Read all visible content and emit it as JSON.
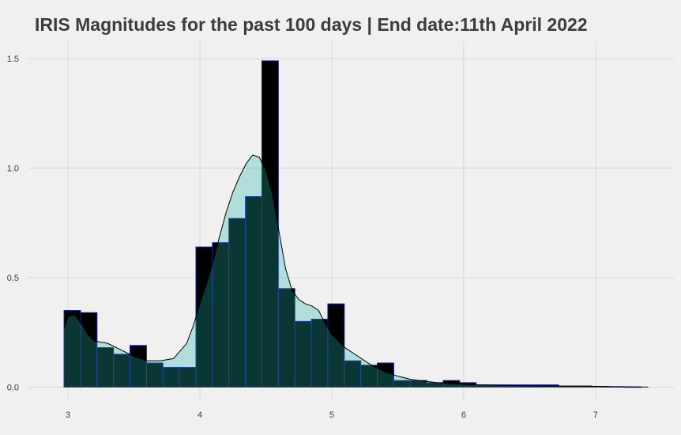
{
  "chart_data": {
    "type": "histogram",
    "title": "IRIS Magnitudes for the past 100 days | End date:11th April 2022",
    "xlabel": "",
    "ylabel": "",
    "xlim": [
      2.7,
      7.6
    ],
    "ylim": [
      -0.06,
      1.58
    ],
    "x_ticks": [
      "3",
      "4",
      "5",
      "6",
      "7"
    ],
    "y_ticks": [
      "0.0",
      "0.5",
      "1.0",
      "1.5"
    ],
    "grid": true,
    "bin_width": 0.125,
    "histogram": {
      "name": "histogram",
      "bins": [
        {
          "start": 2.97,
          "value": 0.35
        },
        {
          "start": 3.095,
          "value": 0.34
        },
        {
          "start": 3.22,
          "value": 0.18
        },
        {
          "start": 3.345,
          "value": 0.15
        },
        {
          "start": 3.47,
          "value": 0.19
        },
        {
          "start": 3.595,
          "value": 0.11
        },
        {
          "start": 3.72,
          "value": 0.09
        },
        {
          "start": 3.845,
          "value": 0.09
        },
        {
          "start": 3.97,
          "value": 0.64
        },
        {
          "start": 4.095,
          "value": 0.66
        },
        {
          "start": 4.22,
          "value": 0.77
        },
        {
          "start": 4.345,
          "value": 0.87
        },
        {
          "start": 4.47,
          "value": 1.49
        },
        {
          "start": 4.595,
          "value": 0.45
        },
        {
          "start": 4.72,
          "value": 0.3
        },
        {
          "start": 4.845,
          "value": 0.31
        },
        {
          "start": 4.97,
          "value": 0.38
        },
        {
          "start": 5.095,
          "value": 0.12
        },
        {
          "start": 5.22,
          "value": 0.1
        },
        {
          "start": 5.345,
          "value": 0.11
        },
        {
          "start": 5.47,
          "value": 0.03
        },
        {
          "start": 5.595,
          "value": 0.03
        },
        {
          "start": 5.72,
          "value": 0.02
        },
        {
          "start": 5.845,
          "value": 0.03
        },
        {
          "start": 5.97,
          "value": 0.02
        },
        {
          "start": 6.095,
          "value": 0.01
        },
        {
          "start": 6.22,
          "value": 0.01
        },
        {
          "start": 6.345,
          "value": 0.01
        },
        {
          "start": 6.47,
          "value": 0.01
        },
        {
          "start": 6.595,
          "value": 0.01
        },
        {
          "start": 6.72,
          "value": 0.005
        },
        {
          "start": 6.845,
          "value": 0.005
        },
        {
          "start": 6.97,
          "value": 0.003
        },
        {
          "start": 7.095,
          "value": 0.002
        },
        {
          "start": 7.22,
          "value": 0.001
        }
      ]
    },
    "density": {
      "name": "density",
      "x": [
        2.97,
        3.0,
        3.05,
        3.1,
        3.15,
        3.2,
        3.3,
        3.4,
        3.5,
        3.6,
        3.7,
        3.8,
        3.9,
        3.95,
        4.0,
        4.05,
        4.1,
        4.15,
        4.2,
        4.25,
        4.3,
        4.35,
        4.4,
        4.45,
        4.5,
        4.55,
        4.6,
        4.65,
        4.7,
        4.75,
        4.8,
        4.85,
        4.9,
        4.95,
        5.0,
        5.05,
        5.1,
        5.2,
        5.3,
        5.4,
        5.5,
        5.6,
        5.8,
        6.0,
        6.2,
        6.4,
        6.6,
        6.8,
        7.0,
        7.2,
        7.4
      ],
      "y": [
        0.27,
        0.32,
        0.33,
        0.29,
        0.24,
        0.21,
        0.2,
        0.17,
        0.14,
        0.12,
        0.12,
        0.13,
        0.2,
        0.28,
        0.38,
        0.47,
        0.57,
        0.69,
        0.8,
        0.89,
        0.96,
        1.02,
        1.06,
        1.05,
        0.99,
        0.88,
        0.71,
        0.54,
        0.44,
        0.4,
        0.38,
        0.37,
        0.35,
        0.29,
        0.24,
        0.21,
        0.18,
        0.14,
        0.1,
        0.07,
        0.05,
        0.035,
        0.02,
        0.012,
        0.009,
        0.007,
        0.005,
        0.004,
        0.003,
        0.001,
        0.0
      ]
    },
    "colors": {
      "background": "#f0f0f0",
      "grid": "#d2d2d2",
      "hist_fill": "#000000",
      "hist_border": "#1c1ca0",
      "density_fill": "#20b2aa",
      "density_fill_opacity": 0.3,
      "density_line": "#000000",
      "text": "#3c3c3c"
    }
  }
}
